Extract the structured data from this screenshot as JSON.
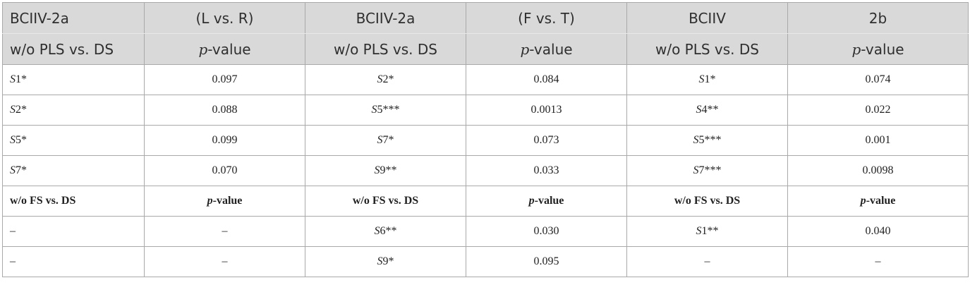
{
  "header": {
    "row1": [
      "BCIIV-2a",
      "(L vs. R)",
      "BCIIV-2a",
      "(F vs. T)",
      "BCIIV",
      "2b"
    ],
    "row2": [
      "w/o PLS vs. DS",
      "p",
      "-value",
      "w/o PLS vs. DS",
      "p",
      "-value",
      "w/o PLS vs. DS",
      "p",
      "-value"
    ]
  },
  "rows": [
    {
      "c1s": "S",
      "c1r": "1*",
      "c2": "0.097",
      "c3s": "S",
      "c3r": "2*",
      "c4": "0.084",
      "c5s": "S",
      "c5r": "1*",
      "c6": "0.074"
    },
    {
      "c1s": "S",
      "c1r": "2*",
      "c2": "0.088",
      "c3s": "S",
      "c3r": "5***",
      "c4": "0.0013",
      "c5s": "S",
      "c5r": "4**",
      "c6": "0.022"
    },
    {
      "c1s": "S",
      "c1r": "5*",
      "c2": "0.099",
      "c3s": "S",
      "c3r": "7*",
      "c4": "0.073",
      "c5s": "S",
      "c5r": "5***",
      "c6": "0.001"
    },
    {
      "c1s": "S",
      "c1r": "7*",
      "c2": "0.070",
      "c3s": "S",
      "c3r": "9**",
      "c4": "0.033",
      "c5s": "S",
      "c5r": "7***",
      "c6": "0.0098"
    }
  ],
  "subheader": {
    "c1": "w/o FS vs. DS",
    "c2p": "p",
    "c2v": "-value",
    "c3": "w/o FS vs. DS",
    "c4p": "p",
    "c4v": "-value",
    "c5": "w/o FS vs. DS",
    "c6p": "p",
    "c6v": "-value"
  },
  "rows2": [
    {
      "c1": "–",
      "c2": "–",
      "c3s": "S",
      "c3r": "6**",
      "c4": "0.030",
      "c5s": "S",
      "c5r": "1**",
      "c6": "0.040"
    },
    {
      "c1": "–",
      "c2": "–",
      "c3s": "S",
      "c3r": "9*",
      "c4": "0.095",
      "c5": "–",
      "c6": "–"
    }
  ]
}
